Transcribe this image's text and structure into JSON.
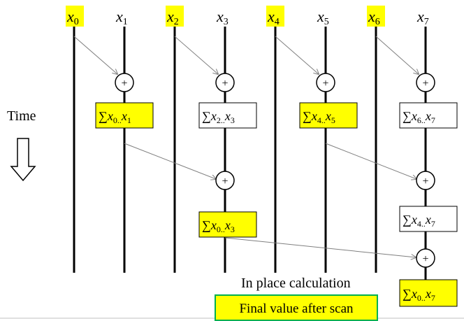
{
  "colors": {
    "highlight": "#ffff00",
    "line": "#000000",
    "arrow": "#7f7f7f",
    "final_border": "#00b050",
    "bottom_rule": "#bfbfbf"
  },
  "inputs": [
    {
      "base": "x",
      "sub": "0",
      "highlight": true
    },
    {
      "base": "x",
      "sub": "1",
      "highlight": false
    },
    {
      "base": "x",
      "sub": "2",
      "highlight": true
    },
    {
      "base": "x",
      "sub": "3",
      "highlight": false
    },
    {
      "base": "x",
      "sub": "4",
      "highlight": true
    },
    {
      "base": "x",
      "sub": "5",
      "highlight": false
    },
    {
      "base": "x",
      "sub": "6",
      "highlight": true
    },
    {
      "base": "x",
      "sub": "7",
      "highlight": false
    }
  ],
  "operator_symbol": "+",
  "sum_symbol": "∑",
  "sums": {
    "s01": {
      "a": "x",
      "a_sub": "0..",
      "b": "x",
      "b_sub": "1",
      "highlight": true
    },
    "s23": {
      "a": "x",
      "a_sub": "2..",
      "b": "x",
      "b_sub": "3",
      "highlight": false
    },
    "s45": {
      "a": "x",
      "a_sub": "4..",
      "b": "x",
      "b_sub": "5",
      "highlight": true
    },
    "s67": {
      "a": "x",
      "a_sub": "6..",
      "b": "x",
      "b_sub": "7",
      "highlight": false
    },
    "s03": {
      "a": "x",
      "a_sub": "0..",
      "b": "x",
      "b_sub": "3",
      "highlight": true
    },
    "s47": {
      "a": "x",
      "a_sub": "4..",
      "b": "x",
      "b_sub": "7",
      "highlight": false
    },
    "s07": {
      "a": "x",
      "a_sub": "0..",
      "b": "x",
      "b_sub": "7",
      "highlight": true
    }
  },
  "labels": {
    "time": "Time",
    "in_place": "In place calculation",
    "final": "Final value after scan"
  }
}
